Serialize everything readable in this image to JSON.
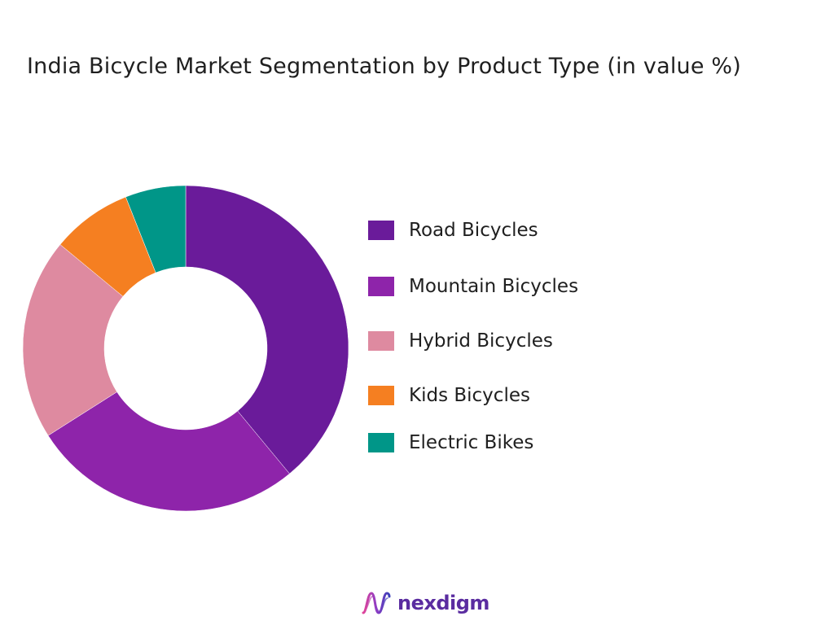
{
  "chart_data": {
    "type": "donut",
    "title": "India Bicycle Market Segmentation by Product Type  (in value %)",
    "categories": [
      "Road Bicycles",
      "Mountain Bicycles",
      "Hybrid Bicycles",
      "Kids Bicycles",
      "Electric Bikes"
    ],
    "values": [
      39,
      27,
      20,
      8,
      6
    ],
    "colors": [
      "#6a1b9a",
      "#8e24aa",
      "#de8aa0",
      "#f57f21",
      "#009688"
    ],
    "legend_position": "right"
  },
  "brand": {
    "name": "nexdigm",
    "logo_icon": "nexdigm-wave-logo-icon",
    "color": "#5a2ca0"
  }
}
